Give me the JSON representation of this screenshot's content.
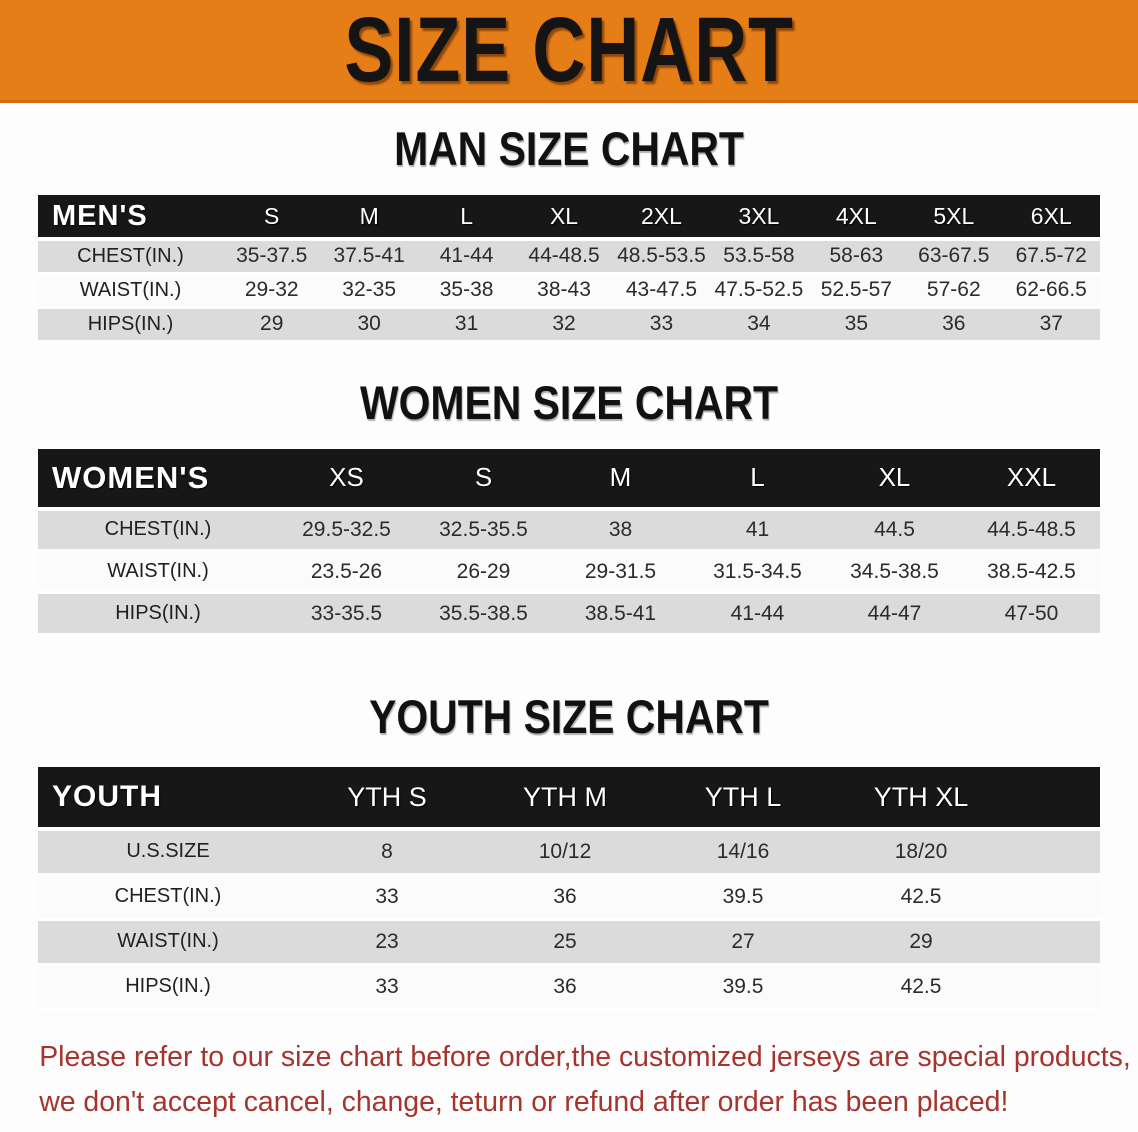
{
  "banner": {
    "title": "SIZE CHART"
  },
  "sections": [
    {
      "heading": "MAN SIZE CHART",
      "table": {
        "label": "MEN'S",
        "columns": [
          "S",
          "M",
          "L",
          "XL",
          "2XL",
          "3XL",
          "4XL",
          "5XL",
          "6XL"
        ],
        "rows": [
          {
            "label": "CHEST(IN.)",
            "values": [
              "35-37.5",
              "37.5-41",
              "41-44",
              "44-48.5",
              "48.5-53.5",
              "53.5-58",
              "58-63",
              "63-67.5",
              "67.5-72"
            ]
          },
          {
            "label": "WAIST(IN.)",
            "values": [
              "29-32",
              "32-35",
              "35-38",
              "38-43",
              "43-47.5",
              "47.5-52.5",
              "52.5-57",
              "57-62",
              "62-66.5"
            ]
          },
          {
            "label": "HIPS(IN.)",
            "values": [
              "29",
              "30",
              "31",
              "32",
              "33",
              "34",
              "35",
              "36",
              "37"
            ]
          }
        ]
      }
    },
    {
      "heading": "WOMEN SIZE CHART",
      "table": {
        "label": "WOMEN'S",
        "columns": [
          "XS",
          "S",
          "M",
          "L",
          "XL",
          "XXL"
        ],
        "rows": [
          {
            "label": "CHEST(IN.)",
            "values": [
              "29.5-32.5",
              "32.5-35.5",
              "38",
              "41",
              "44.5",
              "44.5-48.5"
            ]
          },
          {
            "label": "WAIST(IN.)",
            "values": [
              "23.5-26",
              "26-29",
              "29-31.5",
              "31.5-34.5",
              "34.5-38.5",
              "38.5-42.5"
            ]
          },
          {
            "label": "HIPS(IN.)",
            "values": [
              "33-35.5",
              "35.5-38.5",
              "38.5-41",
              "41-44",
              "44-47",
              "47-50"
            ]
          }
        ]
      }
    },
    {
      "heading": "YOUTH SIZE CHART",
      "table": {
        "label": "YOUTH",
        "columns": [
          "YTH S",
          "YTH M",
          "YTH L",
          "YTH XL"
        ],
        "rows": [
          {
            "label": "U.S.SIZE",
            "values": [
              "8",
              "10/12",
              "14/16",
              "18/20"
            ]
          },
          {
            "label": "CHEST(IN.)",
            "values": [
              "33",
              "36",
              "39.5",
              "42.5"
            ]
          },
          {
            "label": "WAIST(IN.)",
            "values": [
              "23",
              "25",
              "27",
              "29"
            ]
          },
          {
            "label": "HIPS(IN.)",
            "values": [
              "33",
              "36",
              "39.5",
              "42.5"
            ]
          }
        ]
      }
    }
  ],
  "footer": {
    "line1": "Please refer to our size chart before order,the customized jerseys are special products,",
    "line2": "we don't accept cancel, change, teturn or refund after order has been placed!"
  },
  "colors": {
    "banner-bg": "#E67E17",
    "banner-text": "#141414",
    "header-bar": "#171717",
    "row-alt": "#DBDBDB",
    "footer-text": "#A6342E"
  }
}
